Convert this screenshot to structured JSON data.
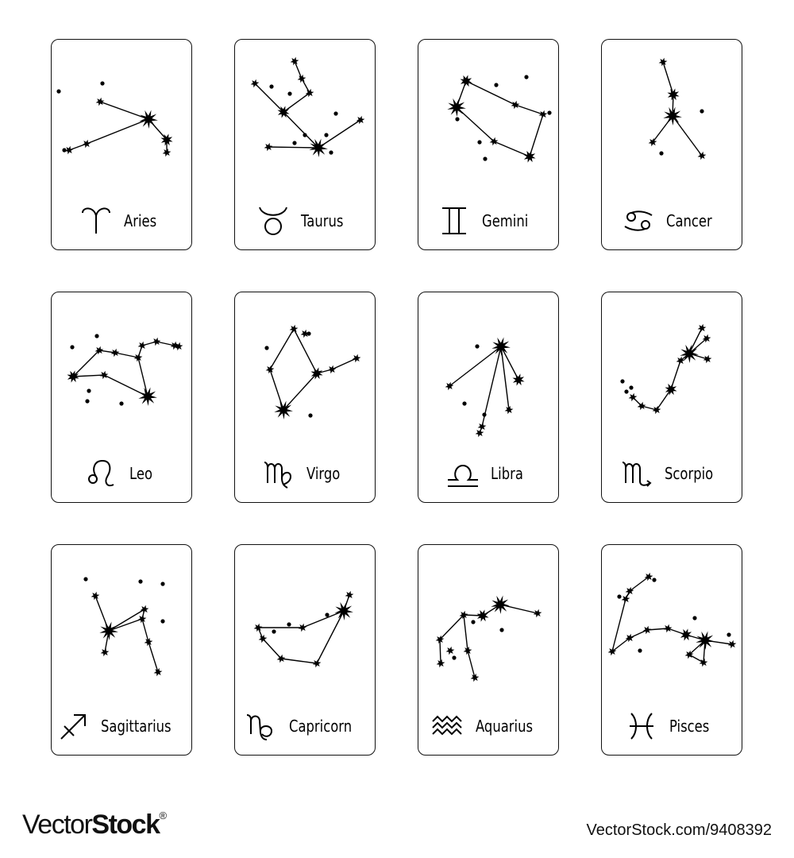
{
  "cards": [
    {
      "name": "Aries",
      "symbol": "aries-symbol-icon"
    },
    {
      "name": "Taurus",
      "symbol": "taurus-symbol-icon"
    },
    {
      "name": "Gemini",
      "symbol": "gemini-symbol-icon"
    },
    {
      "name": "Cancer",
      "symbol": "cancer-symbol-icon"
    },
    {
      "name": "Leo",
      "symbol": "leo-symbol-icon"
    },
    {
      "name": "Virgo",
      "symbol": "virgo-symbol-icon"
    },
    {
      "name": "Libra",
      "symbol": "libra-symbol-icon"
    },
    {
      "name": "Scorpio",
      "symbol": "scorpio-symbol-icon"
    },
    {
      "name": "Sagittarius",
      "symbol": "sagittarius-symbol-icon"
    },
    {
      "name": "Capricorn",
      "symbol": "capricorn-symbol-icon"
    },
    {
      "name": "Aquarius",
      "symbol": "aquarius-symbol-icon"
    },
    {
      "name": "Pisces",
      "symbol": "pisces-symbol-icon"
    }
  ],
  "watermark": {
    "logo_light": "Vector",
    "logo_bold": "Stock",
    "logo_mark": "®",
    "url": "VectorStock.com/9408392"
  },
  "colors": {
    "ink": "#000000",
    "card_border": "#111111",
    "background": "#ffffff"
  }
}
